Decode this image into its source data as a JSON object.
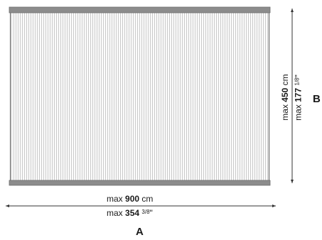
{
  "dimensions": {
    "width": {
      "cm_prefix": "max",
      "cm_value": "900",
      "cm_unit": "cm",
      "in_prefix": "max",
      "in_value": "354",
      "in_fraction": "3/8",
      "in_unit": "\"",
      "axis_letter": "A"
    },
    "height": {
      "cm_prefix": "max",
      "cm_value": "450",
      "cm_unit": "cm",
      "in_prefix": "max",
      "in_value": "177",
      "in_fraction": "1/8",
      "in_unit": "\"",
      "axis_letter": "B"
    }
  },
  "colors": {
    "rail": "#8c8c8c",
    "rail_edge": "#6e6e6e",
    "panel_line": "#b5b5b5",
    "panel_bg": "#fbfbfb",
    "dimension_line": "#333333"
  }
}
